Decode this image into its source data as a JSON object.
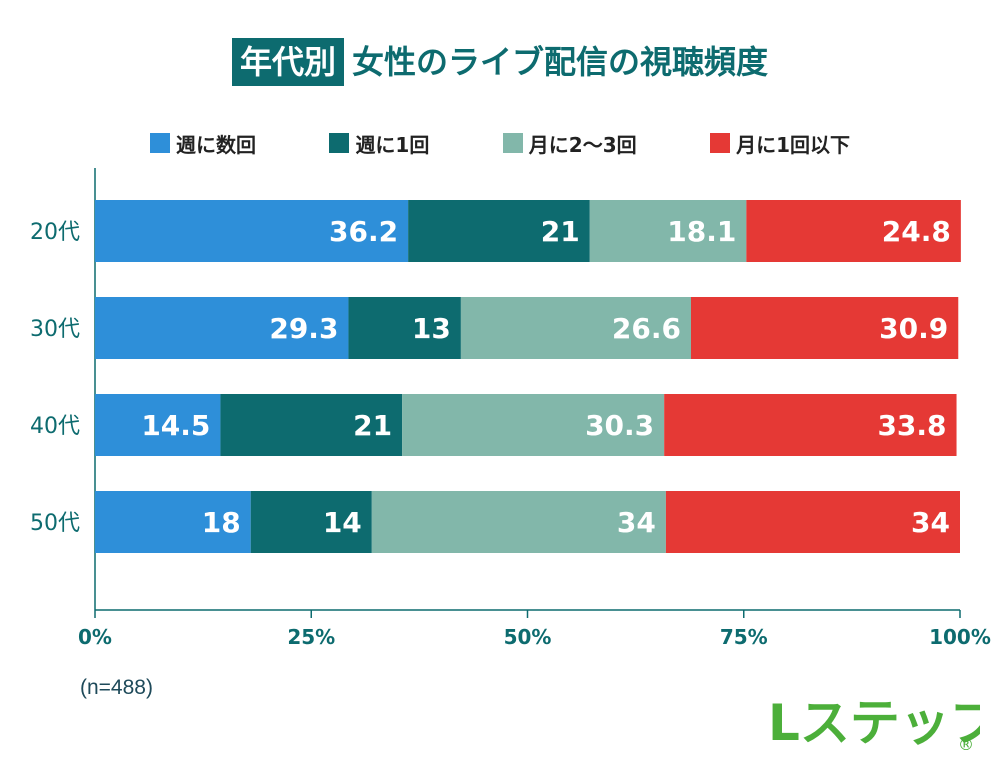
{
  "title": {
    "tag": "年代別",
    "main": "女性のライブ配信の視聴頻度"
  },
  "colors": {
    "weekly_several": "#2e8fd9",
    "weekly_once": "#0d6b6f",
    "monthly_2_3": "#82b7aa",
    "monthly_1_or_less": "#e53935",
    "axis_text": "#0d6b6f"
  },
  "chart_data": {
    "type": "bar",
    "orientation": "horizontal",
    "stacked": true,
    "categories": [
      "20代",
      "30代",
      "40代",
      "50代"
    ],
    "series": [
      {
        "name": "週に数回",
        "color": "#2e8fd9",
        "values": [
          36.2,
          29.3,
          14.5,
          18
        ]
      },
      {
        "name": "週に1回",
        "color": "#0d6b6f",
        "values": [
          21,
          13,
          21,
          14
        ]
      },
      {
        "name": "月に2〜3回",
        "color": "#82b7aa",
        "values": [
          18.1,
          26.6,
          30.3,
          34
        ]
      },
      {
        "name": "月に1回以下",
        "color": "#e53935",
        "values": [
          24.8,
          30.9,
          33.8,
          34
        ]
      }
    ],
    "xlim": [
      0,
      100
    ],
    "x_ticks": [
      "0%",
      "25%",
      "50%",
      "75%",
      "100%"
    ],
    "legend_position": "top",
    "grid": false
  },
  "footnote": "(n=488)",
  "logo": {
    "text": "Lステップ",
    "mark": "®"
  }
}
